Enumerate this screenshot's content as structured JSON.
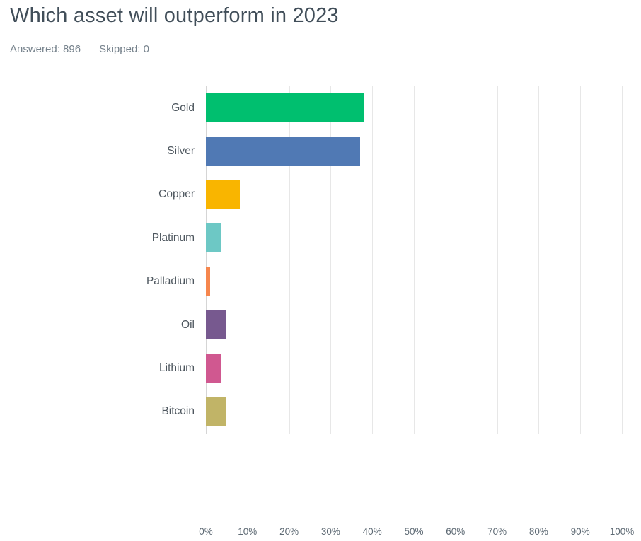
{
  "header": {
    "title": "Which asset will outperform in 2023",
    "answered_text": "Answered: 896",
    "skipped_text": "Skipped: 0"
  },
  "chart_data": {
    "type": "bar",
    "orientation": "horizontal",
    "title": "Which asset will outperform in 2023",
    "categories": [
      "Gold",
      "Silver",
      "Copper",
      "Platinum",
      "Palladium",
      "Oil",
      "Lithium",
      "Bitcoin"
    ],
    "values": [
      37.9,
      37.1,
      8.1,
      3.7,
      1.0,
      4.8,
      3.7,
      4.8
    ],
    "unit": "%",
    "bar_colors": [
      "#00BF6F",
      "#5079B4",
      "#F9B500",
      "#6DC8C5",
      "#F6864D",
      "#77598F",
      "#D05890",
      "#C1B467"
    ],
    "xlim": [
      0,
      100
    ],
    "x_tick_step": 10,
    "x_tick_labels": [
      "0%",
      "10%",
      "20%",
      "30%",
      "40%",
      "50%",
      "60%",
      "70%",
      "80%",
      "90%",
      "100%"
    ],
    "grid": "vertical",
    "legend": "none",
    "xlabel": "",
    "ylabel": ""
  }
}
